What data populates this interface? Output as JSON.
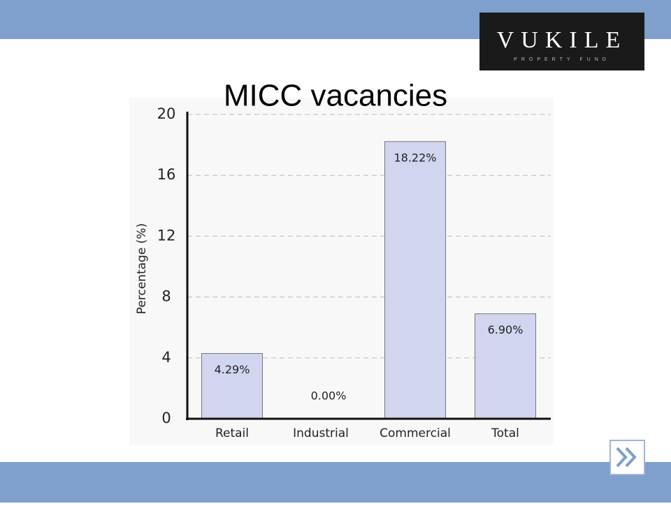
{
  "logo": {
    "name": "VUKILE",
    "tagline": "PROPERTY FUND"
  },
  "chart_data": {
    "type": "bar",
    "title": "MICC vacancies",
    "y_label": "Percentage (%)",
    "categories": [
      "Retail",
      "Industrial",
      "Commercial",
      "Total"
    ],
    "values": [
      4.29,
      0.0,
      18.22,
      6.9
    ],
    "value_labels": [
      "4.29%",
      "0.00%",
      "18.22%",
      "6.90%"
    ],
    "color": "#d2d5ef",
    "ylim": [
      0,
      20
    ],
    "yticks": [
      0,
      4,
      8,
      12,
      16,
      20
    ],
    "grid": true
  }
}
